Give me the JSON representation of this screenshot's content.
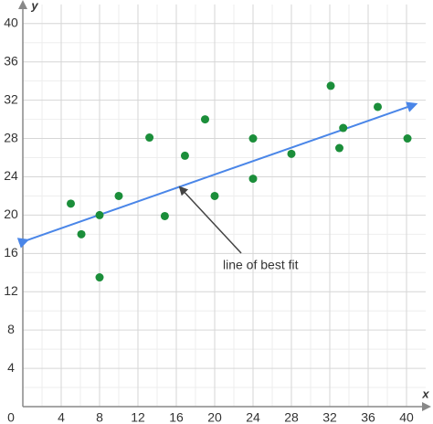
{
  "chart_data": {
    "type": "scatter",
    "x_label": "x",
    "y_label": "y",
    "x": [
      5,
      6.1,
      8,
      8,
      10,
      13.2,
      14.8,
      16.9,
      19,
      20,
      24,
      24,
      28,
      32.1,
      33,
      33.4,
      37,
      40.1
    ],
    "values": [
      21.2,
      18,
      20,
      13.5,
      22,
      28.1,
      19.9,
      26.2,
      30,
      22,
      28,
      23.8,
      26.4,
      33.5,
      27,
      29.1,
      31.3,
      28
    ],
    "color": "#1b8e3a",
    "fit_line": {
      "x": [
        0.5,
        41
      ],
      "y": [
        17.4,
        31.6
      ],
      "color": "#4a86e8"
    },
    "annotation": "line of best fit",
    "xlim": [
      0,
      42
    ],
    "ylim": [
      0,
      42
    ],
    "xticks": [
      0,
      4,
      8,
      12,
      16,
      20,
      24,
      28,
      32,
      36,
      40
    ],
    "yticks": [
      4,
      8,
      12,
      16,
      20,
      24,
      28,
      32,
      36,
      40
    ],
    "xminorticks": [
      2,
      6,
      10,
      14,
      18,
      22,
      26,
      30,
      34,
      38
    ],
    "yminorticks": [
      2,
      6,
      10,
      14,
      18,
      22,
      26,
      30,
      34,
      38
    ],
    "grid": true
  }
}
